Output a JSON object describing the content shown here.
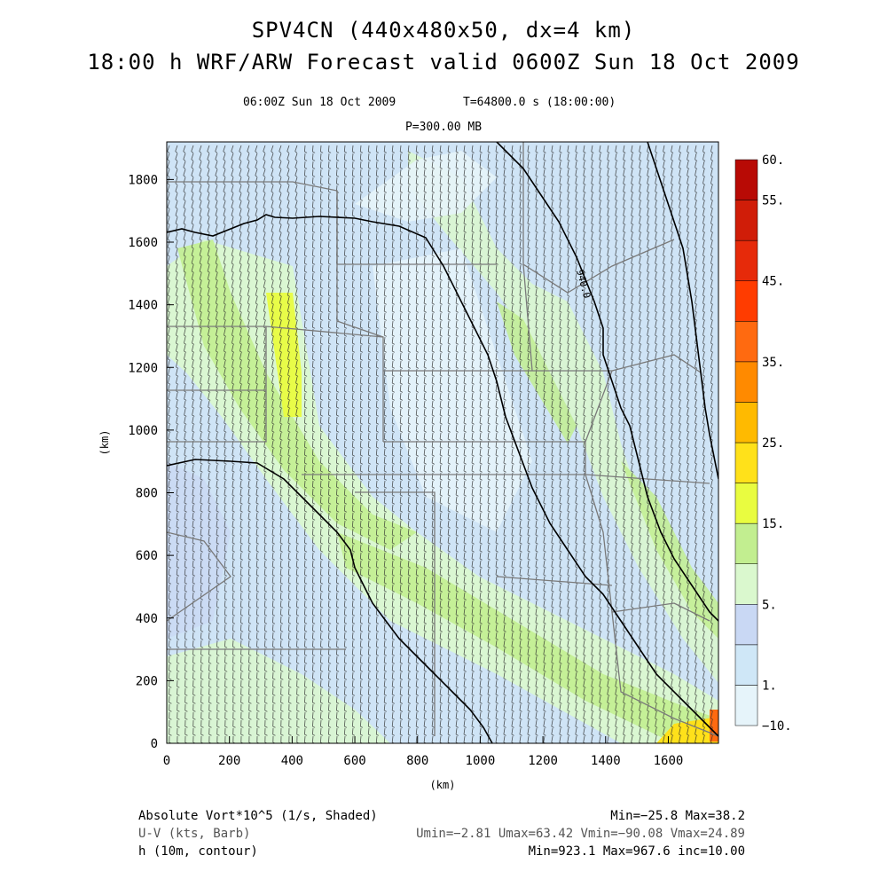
{
  "titles": {
    "line1": "SPV4CN (440x480x50, dx=4 km)",
    "line2": "18:00 h WRF/ARW Forecast valid 0600Z Sun 18 Oct 2009",
    "valid_time": "06:00Z Sun 18 Oct 2009",
    "sim_time": "T=64800.0 s (18:00:00)",
    "pressure_level": "P=300.00 MB"
  },
  "chart_data": {
    "type": "heatmap",
    "xlabel": "(km)",
    "ylabel": "(km)",
    "xlim": [
      0,
      1760
    ],
    "ylim": [
      0,
      1920
    ],
    "x_ticks": [
      0,
      200,
      400,
      600,
      800,
      1000,
      1200,
      1400,
      1600
    ],
    "y_ticks": [
      0,
      200,
      400,
      600,
      800,
      1000,
      1200,
      1400,
      1600,
      1800
    ],
    "colorbar": {
      "levels": [
        -10,
        1,
        3,
        5,
        10,
        15,
        20,
        25,
        30,
        35,
        40,
        45,
        50,
        55,
        60
      ],
      "labels": [
        "−10.",
        "1.",
        "5.",
        "15.",
        "25.",
        "35.",
        "45.",
        "55.",
        "60."
      ],
      "label_values": [
        -10,
        1,
        5,
        15,
        25,
        35,
        45,
        55,
        60
      ],
      "colors": [
        "#e6f4fa",
        "#cfe7f7",
        "#c9d8f4",
        "#daf8ce",
        "#c2ee90",
        "#e9fc40",
        "#ffe11a",
        "#ffba00",
        "#ff8a00",
        "#ff6a10",
        "#ff3c00",
        "#e62a0a",
        "#d01d08",
        "#b80a05"
      ]
    },
    "contour_label": "940.0",
    "contour_label_value": 940
  },
  "footer": {
    "field1_desc": "Absolute Vort*10^5 (1/s, Shaded)",
    "field1_stats": "Min=−25.8 Max=38.2",
    "field2_desc": "U-V (kts, Barb)",
    "field2_stats": "Umin=−2.81 Umax=63.42 Vmin=−90.08 Vmax=24.89",
    "field3_desc": "h (10m, contour)",
    "field3_stats": "Min=923.1 Max=967.6 inc=10.00"
  }
}
